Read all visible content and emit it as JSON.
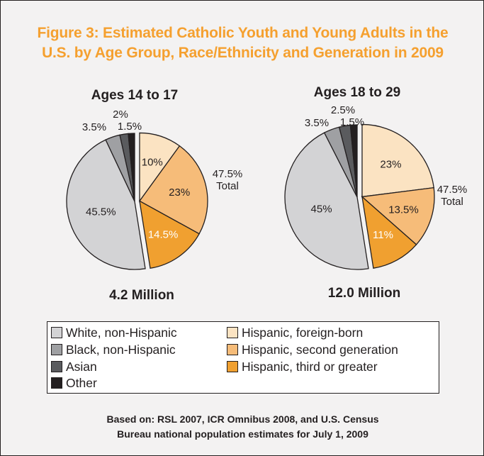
{
  "title_line1": "Figure 3: Estimated Catholic Youth and Young Adults in the",
  "title_line2": "U.S. by Age Group, Race/Ethnicity and Generation in 2009",
  "chart_data": [
    {
      "type": "pie",
      "title": "Ages 14 to 17",
      "total_label": "4.2 Million",
      "hispanic_total": "47.5%",
      "hispanic_total_word": "Total",
      "categories": [
        "Hispanic, foreign-born",
        "Hispanic, second generation",
        "Hispanic, third or greater",
        "White, non-Hispanic",
        "Black, non-Hispanic",
        "Asian",
        "Other"
      ],
      "values": [
        10,
        23,
        14.5,
        45.5,
        3.5,
        2,
        1.5
      ],
      "labels": [
        "10%",
        "23%",
        "14.5%",
        "45.5%",
        "3.5%",
        "2%",
        "1.5%"
      ]
    },
    {
      "type": "pie",
      "title": "Ages 18 to 29",
      "total_label": "12.0 Million",
      "hispanic_total": "47.5%",
      "hispanic_total_word": "Total",
      "categories": [
        "Hispanic, foreign-born",
        "Hispanic, second generation",
        "Hispanic, third or greater",
        "White, non-Hispanic",
        "Black, non-Hispanic",
        "Asian",
        "Other"
      ],
      "values": [
        23,
        13.5,
        11,
        45,
        3.5,
        2.5,
        1.5
      ],
      "labels": [
        "23%",
        "13.5%",
        "11%",
        "45%",
        "3.5%",
        "2.5%",
        "1.5%"
      ]
    }
  ],
  "colors": {
    "Hispanic, foreign-born": "#fbe3c2",
    "Hispanic, second generation": "#f6bc79",
    "Hispanic, third or greater": "#f0a030",
    "White, non-Hispanic": "#d3d3d5",
    "Black, non-Hispanic": "#9fa0a3",
    "Asian": "#5a5b5e",
    "Other": "#231f20"
  },
  "legend": [
    {
      "label": "White, non-Hispanic",
      "color": "#d3d3d5"
    },
    {
      "label": "Black, non-Hispanic",
      "color": "#9fa0a3"
    },
    {
      "label": "Asian",
      "color": "#5a5b5e"
    },
    {
      "label": "Other",
      "color": "#231f20"
    },
    {
      "label": "Hispanic, foreign-born",
      "color": "#fbe3c2"
    },
    {
      "label": "Hispanic, second generation",
      "color": "#f6bc79"
    },
    {
      "label": "Hispanic, third or greater",
      "color": "#f0a030"
    }
  ],
  "source_line1": "Based on: RSL 2007, ICR Omnibus 2008, and U.S. Census",
  "source_line2": "Bureau national population estimates for July 1, 2009"
}
